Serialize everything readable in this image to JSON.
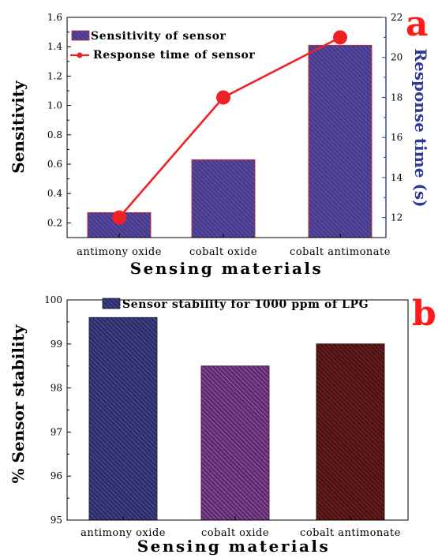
{
  "chart_data": [
    {
      "panel": "a",
      "type": "bar",
      "categories": [
        "antimony oxide",
        "cobalt oxide",
        "cobalt antimonate"
      ],
      "series": [
        {
          "name": "Sensitivity of sensor",
          "type": "bar",
          "axis": "left",
          "values": [
            0.27,
            0.63,
            1.41
          ]
        },
        {
          "name": "Response time of sensor",
          "type": "line",
          "axis": "right",
          "values": [
            12,
            18,
            21
          ]
        }
      ],
      "xlabel": "Sensing materials",
      "ylabel": "Sensitivity",
      "ylabel_right": "Response time (s)",
      "ylim": [
        0.1,
        1.6
      ],
      "ylim_right": [
        11,
        22
      ],
      "yticks": [
        "0.2",
        "0.4",
        "0.6",
        "0.8",
        "1.0",
        "1.2",
        "1.4",
        "1.6"
      ],
      "yticks_right": [
        "12",
        "14",
        "16",
        "18",
        "20",
        "22"
      ],
      "legend_position": "top-left",
      "grid": false
    },
    {
      "panel": "b",
      "type": "bar",
      "categories": [
        "antimony oxide",
        "cobalt oxide",
        "cobalt antimonate"
      ],
      "series": [
        {
          "name": "Sensor stability for 1000 ppm of LPG",
          "values": [
            99.6,
            98.5,
            99.0
          ]
        }
      ],
      "xlabel": "Sensing materials",
      "ylabel": "% Sensor stability",
      "ylim": [
        95,
        100
      ],
      "yticks": [
        "95",
        "96",
        "97",
        "98",
        "99",
        "100"
      ],
      "legend_position": "top",
      "grid": false
    }
  ],
  "colors": {
    "bar_fill": "#3b3d9a",
    "bar_edge": "#c62828",
    "line": "#ee2222",
    "right_axis": "#2e3c96",
    "bar_b1": "#343470",
    "bar_b2": "#7a3d86",
    "bar_b3": "#5a1616",
    "panel_letter": "#ff1a1a"
  }
}
